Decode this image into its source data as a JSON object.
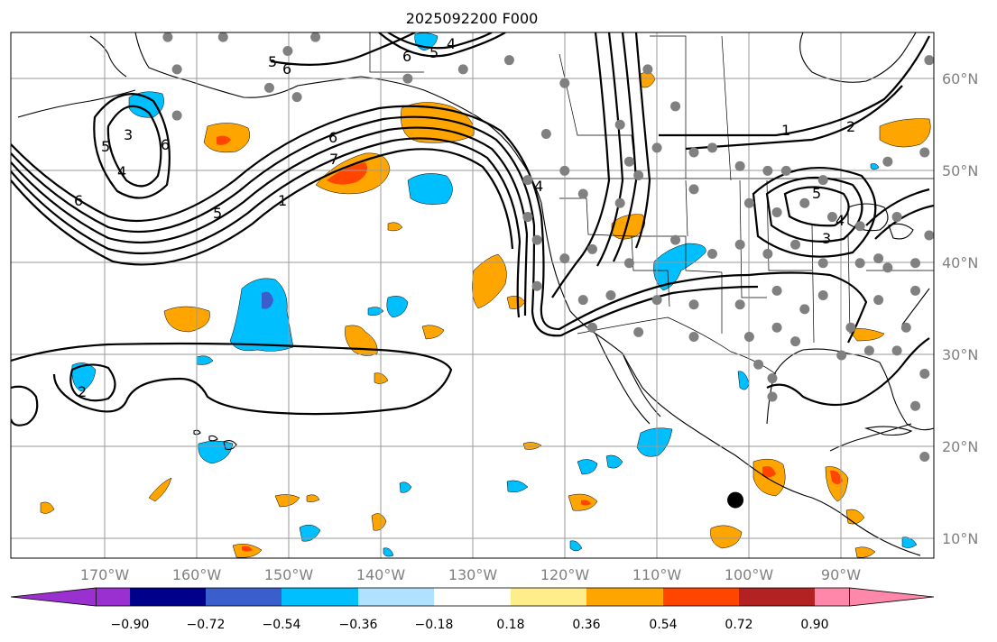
{
  "title": "2025092200 F000",
  "longitude_labels": [
    "170°W",
    "160°W",
    "150°W",
    "140°W",
    "130°W",
    "120°W",
    "110°W",
    "100°W",
    "90°W"
  ],
  "latitude_labels": [
    "60°N",
    "50°N",
    "40°N",
    "30°N",
    "20°N",
    "10°N"
  ],
  "colorbar": {
    "tick_labels": [
      "−0.90",
      "−0.72",
      "−0.54",
      "−0.36",
      "−0.18",
      "0.18",
      "0.36",
      "0.54",
      "0.72",
      "0.90"
    ],
    "colors": [
      "#9b30d0",
      "#00008b",
      "#3a5fcd",
      "#00bfff",
      "#b0e2ff",
      "#ffffff",
      "#ffec8b",
      "#ffa500",
      "#ff4500",
      "#b22222",
      "#ff88aa"
    ]
  },
  "contour_labels": [
    "5",
    "6",
    "6",
    "5",
    "4",
    "6",
    "3",
    "4",
    "6",
    "7",
    "1",
    "5",
    "6",
    "5",
    "1",
    "2",
    "5",
    "4",
    "3",
    "4",
    "2"
  ],
  "map_extent": {
    "lon_min": -180,
    "lon_max": -80,
    "lat_min": 8,
    "lat_max": 65
  },
  "stations": [
    {
      "lon": -163,
      "lat": 64.5
    },
    {
      "lon": -157,
      "lat": 64.5
    },
    {
      "lon": -150,
      "lat": 63
    },
    {
      "lon": -147,
      "lat": 64.5
    },
    {
      "lon": -162,
      "lat": 61
    },
    {
      "lon": -152,
      "lat": 59
    },
    {
      "lon": -162,
      "lat": 56
    },
    {
      "lon": -149,
      "lat": 58
    },
    {
      "lon": -131,
      "lat": 61
    },
    {
      "lon": -126,
      "lat": 62
    },
    {
      "lon": -120,
      "lat": 59.5
    },
    {
      "lon": -137,
      "lat": 60
    },
    {
      "lon": -111,
      "lat": 61
    },
    {
      "lon": -108,
      "lat": 57
    },
    {
      "lon": -114,
      "lat": 55
    },
    {
      "lon": -122,
      "lat": 54
    },
    {
      "lon": -110,
      "lat": 52.5
    },
    {
      "lon": -106,
      "lat": 52
    },
    {
      "lon": -104,
      "lat": 52.5
    },
    {
      "lon": -101,
      "lat": 50.5
    },
    {
      "lon": -98,
      "lat": 50
    },
    {
      "lon": -96,
      "lat": 50
    },
    {
      "lon": -92,
      "lat": 49
    },
    {
      "lon": -113,
      "lat": 51
    },
    {
      "lon": -112,
      "lat": 49.5
    },
    {
      "lon": -120,
      "lat": 50
    },
    {
      "lon": -124,
      "lat": 49
    },
    {
      "lon": -118,
      "lat": 47.5
    },
    {
      "lon": -114,
      "lat": 46.5
    },
    {
      "lon": -106,
      "lat": 48
    },
    {
      "lon": -100,
      "lat": 46.5
    },
    {
      "lon": -97,
      "lat": 45.5
    },
    {
      "lon": -94,
      "lat": 46.5
    },
    {
      "lon": -91,
      "lat": 45
    },
    {
      "lon": -88,
      "lat": 44
    },
    {
      "lon": -84,
      "lat": 45
    },
    {
      "lon": -124,
      "lat": 45
    },
    {
      "lon": -123,
      "lat": 42.5
    },
    {
      "lon": -120,
      "lat": 40.5
    },
    {
      "lon": -117,
      "lat": 41.5
    },
    {
      "lon": -113,
      "lat": 40
    },
    {
      "lon": -108,
      "lat": 42.5
    },
    {
      "lon": -104,
      "lat": 41
    },
    {
      "lon": -101,
      "lat": 42
    },
    {
      "lon": -98,
      "lat": 41
    },
    {
      "lon": -95,
      "lat": 42
    },
    {
      "lon": -92,
      "lat": 40
    },
    {
      "lon": -88,
      "lat": 40
    },
    {
      "lon": -85,
      "lat": 39.5
    },
    {
      "lon": -82,
      "lat": 40
    },
    {
      "lon": -123,
      "lat": 37.5
    },
    {
      "lon": -118,
      "lat": 36
    },
    {
      "lon": -115,
      "lat": 36.5
    },
    {
      "lon": -110,
      "lat": 36
    },
    {
      "lon": -106,
      "lat": 35.5
    },
    {
      "lon": -101,
      "lat": 35.5
    },
    {
      "lon": -97,
      "lat": 37
    },
    {
      "lon": -94,
      "lat": 35
    },
    {
      "lon": -92,
      "lat": 36.5
    },
    {
      "lon": -86,
      "lat": 36
    },
    {
      "lon": -89,
      "lat": 33
    },
    {
      "lon": -83,
      "lat": 33
    },
    {
      "lon": -117,
      "lat": 33
    },
    {
      "lon": -112,
      "lat": 32.5
    },
    {
      "lon": -106,
      "lat": 32
    },
    {
      "lon": -100,
      "lat": 32
    },
    {
      "lon": -97,
      "lat": 33
    },
    {
      "lon": -95,
      "lat": 31.5
    },
    {
      "lon": -90,
      "lat": 30
    },
    {
      "lon": -87,
      "lat": 30.5
    },
    {
      "lon": -84,
      "lat": 30.5
    },
    {
      "lon": -81,
      "lat": 28
    },
    {
      "lon": -99,
      "lat": 29
    },
    {
      "lon": -97.5,
      "lat": 27.5
    },
    {
      "lon": -97.5,
      "lat": 25.5
    },
    {
      "lon": -82,
      "lat": 24.5
    },
    {
      "lon": -81,
      "lat": 19
    },
    {
      "lon": -80.5,
      "lat": 62
    },
    {
      "lon": -80.5,
      "lat": 43
    },
    {
      "lon": -81,
      "lat": 52
    },
    {
      "lon": -85,
      "lat": 51
    },
    {
      "lon": -82,
      "lat": 37
    },
    {
      "lon": -86,
      "lat": 40.5
    }
  ],
  "storm_marker": {
    "lon": -101.5,
    "lat": 14.3
  }
}
